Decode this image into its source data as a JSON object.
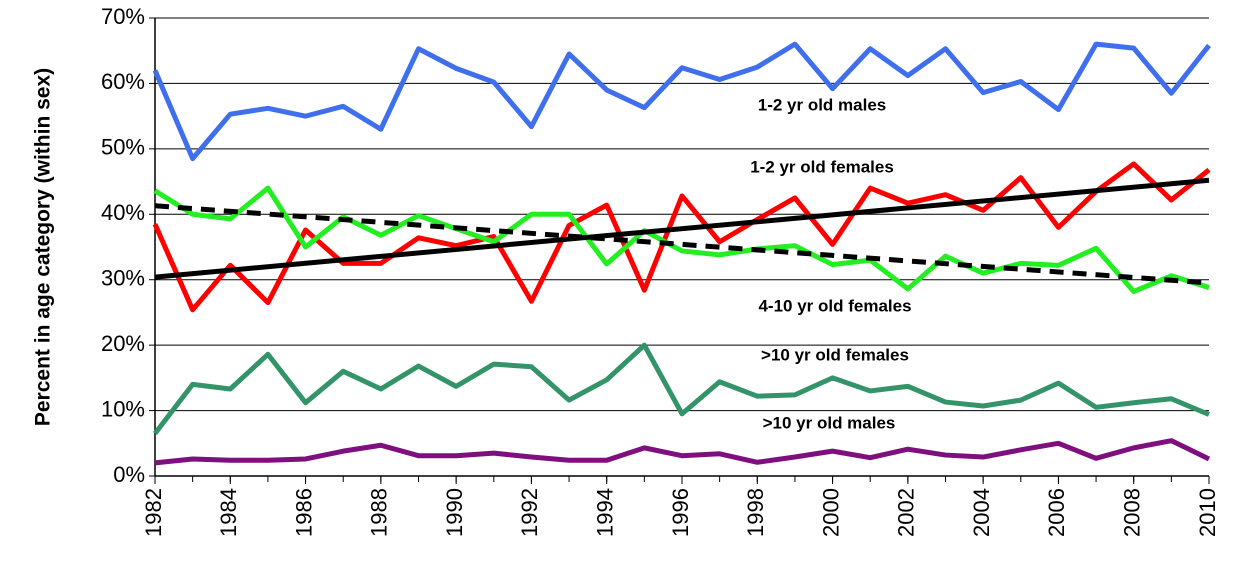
{
  "chart_data": {
    "type": "line",
    "y_label": "Percent in age category (within sex)",
    "x": [
      1982,
      1983,
      1984,
      1985,
      1986,
      1987,
      1988,
      1989,
      1990,
      1991,
      1992,
      1993,
      1994,
      1995,
      1996,
      1997,
      1998,
      1999,
      2000,
      2001,
      2002,
      2003,
      2004,
      2005,
      2006,
      2007,
      2008,
      2009,
      2010
    ],
    "xlim": [
      1982,
      2010
    ],
    "xticks": [
      1982,
      1984,
      1986,
      1988,
      1990,
      1992,
      1994,
      1996,
      1998,
      2000,
      2002,
      2004,
      2006,
      2008,
      2010
    ],
    "ylim": [
      0,
      70
    ],
    "yticks": [
      {
        "value": 0,
        "label": "0%"
      },
      {
        "value": 10,
        "label": "10%"
      },
      {
        "value": 20,
        "label": "20%"
      },
      {
        "value": 30,
        "label": "30%"
      },
      {
        "value": 40,
        "label": "40%"
      },
      {
        "value": 50,
        "label": "50%"
      },
      {
        "value": 60,
        "label": "60%"
      },
      {
        "value": 70,
        "label": "70%"
      }
    ],
    "grid": true,
    "series": [
      {
        "name": "1-2 yr old males",
        "color": "#3f6fec",
        "values": [
          62,
          48.5,
          55.3,
          56.2,
          55,
          56.5,
          53,
          65.3,
          62.3,
          60.2,
          53.4,
          64.5,
          59,
          56.3,
          62.4,
          60.6,
          62.5,
          66,
          59.2,
          65.3,
          61.2,
          65.3,
          58.6,
          60.3,
          56,
          66,
          65.4,
          58.5,
          65.8
        ]
      },
      {
        "name": "1-2 yr old females",
        "color": "#ff0000",
        "values": [
          38.5,
          25.4,
          32.2,
          26.5,
          37.6,
          32.5,
          32.5,
          36.4,
          35.2,
          36.6,
          26.7,
          38.3,
          41.4,
          28.4,
          42.8,
          35.8,
          39.2,
          42.5,
          35.4,
          44,
          41.7,
          43,
          40.6,
          45.6,
          38,
          43.5,
          47.7,
          42.2,
          46.8
        ]
      },
      {
        "name": "4-10 yr old females",
        "color": "#22ee22",
        "values": [
          43.6,
          40,
          39.3,
          44,
          35,
          39.6,
          36.8,
          39.8,
          37.8,
          35.8,
          40,
          40,
          32.4,
          37.5,
          34.4,
          33.8,
          34.7,
          35.2,
          32.3,
          33,
          28.6,
          33.6,
          31,
          32.5,
          32.2,
          34.8,
          28.2,
          30.6,
          28.8
        ]
      },
      {
        "name": ">10 yr old females",
        "color": "#33946a",
        "values": [
          6.5,
          14,
          13.3,
          18.6,
          11.2,
          16,
          13.3,
          16.8,
          13.7,
          17.1,
          16.7,
          11.6,
          14.7,
          20,
          9.5,
          14.4,
          12.2,
          12.4,
          15,
          13,
          13.7,
          11.3,
          10.7,
          11.6,
          14.2,
          10.5,
          11.2,
          11.8,
          9.4
        ]
      },
      {
        "name": ">10 yr old males",
        "color": "#7f0f7f",
        "values": [
          2,
          2.6,
          2.4,
          2.4,
          2.6,
          3.8,
          4.7,
          3.1,
          3.1,
          3.5,
          2.9,
          2.4,
          2.4,
          4.3,
          3.1,
          3.4,
          2.1,
          2.9,
          3.8,
          2.8,
          4.1,
          3.2,
          2.9,
          4,
          5,
          2.7,
          4.3,
          5.4,
          2.6
        ]
      }
    ],
    "trendlines": [
      {
        "color": "#000000",
        "dash": false,
        "x": [
          1982,
          2010
        ],
        "values": [
          30.4,
          45.2
        ]
      },
      {
        "color": "#000000",
        "dash": true,
        "x": [
          1982,
          2010
        ],
        "values": [
          41.3,
          29.5
        ]
      }
    ]
  }
}
